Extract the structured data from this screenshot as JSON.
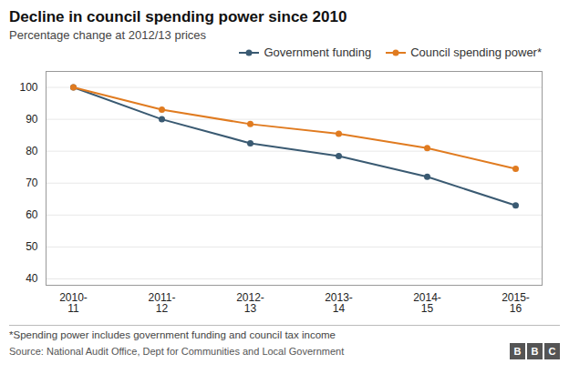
{
  "chart_data": {
    "type": "line",
    "title": "Decline in council spending power since 2010",
    "subtitle": "Percentage change at 2012/13 prices",
    "categories": [
      "2010-\n11",
      "2011-\n12",
      "2012-\n13",
      "2013-\n14",
      "2014-\n15",
      "2015-\n16"
    ],
    "series": [
      {
        "name": "Government funding",
        "color": "#3a5a72",
        "marker": "circle",
        "values": [
          100,
          90,
          82.5,
          78.5,
          72,
          63
        ]
      },
      {
        "name": "Council spending power*",
        "color": "#e07b20",
        "marker": "circle",
        "values": [
          100,
          93,
          88.5,
          85.5,
          81,
          74.5
        ]
      }
    ],
    "ylim": [
      38,
      105
    ],
    "yticks": [
      40,
      50,
      60,
      70,
      80,
      90,
      100
    ],
    "grid": true,
    "legend": "top-right",
    "footnote": "*Spending power includes government funding and council tax income",
    "source": "Source: National Audit Office, Dept for Communities and Local Government",
    "annotation": "BBC"
  }
}
